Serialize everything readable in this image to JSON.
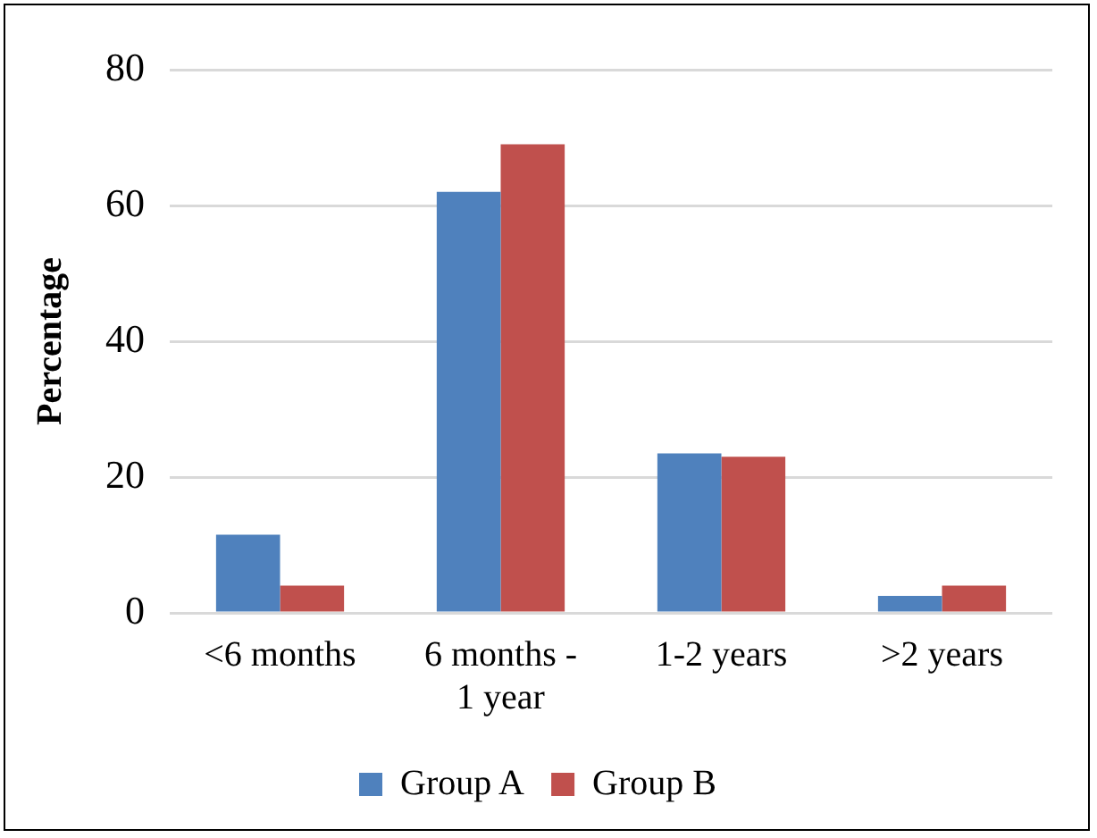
{
  "chart_data": {
    "type": "bar",
    "ylabel": "Percentage",
    "categories": [
      "<6 months",
      "6 months - 1 year",
      "1-2 years",
      ">2 years"
    ],
    "series": [
      {
        "name": "Group A",
        "color": "#4f81bd",
        "values": [
          11.5,
          62,
          23.5,
          2.5
        ]
      },
      {
        "name": "Group B",
        "color": "#c0504d",
        "values": [
          4,
          69,
          23,
          4
        ]
      }
    ],
    "ylim": [
      0,
      80
    ],
    "yticks": [
      0,
      20,
      40,
      60,
      80
    ],
    "grid": "y",
    "legend": "bottom"
  }
}
